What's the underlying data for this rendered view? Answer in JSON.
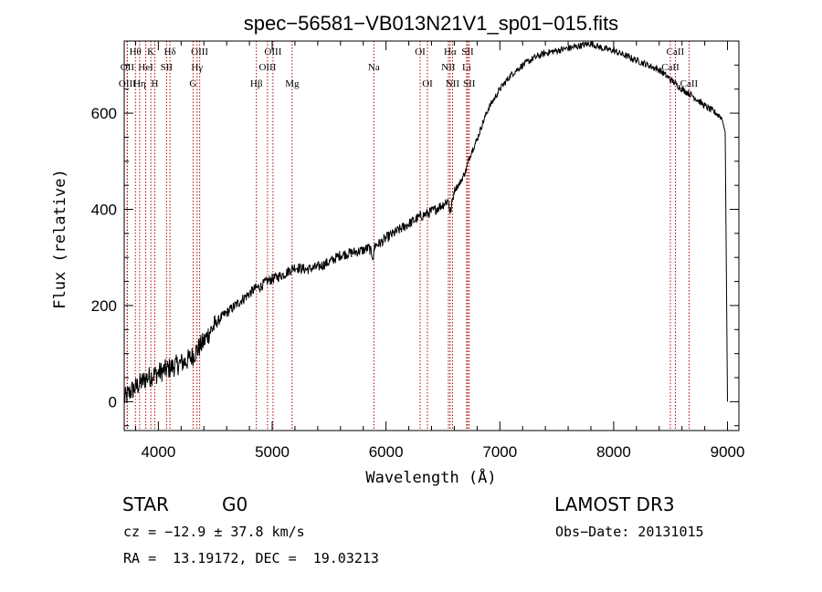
{
  "colors": {
    "spectrum": "#000000",
    "line_marker": "#b00000",
    "background": "#ffffff"
  },
  "info": {
    "object_class": "STAR",
    "subclass": "G0",
    "survey": "LAMOST DR3",
    "cz": "cz = −12.9 ± 37.8 km/s",
    "obs_date": "Obs−Date: 20131015",
    "coords": "RA =  13.19172, DEC =  19.03213"
  },
  "chart_data": {
    "type": "line",
    "title": "spec−56581−VB013N21V1_sp01−015.fits",
    "xlabel": "Wavelength (Å)",
    "ylabel": "Flux (relative)",
    "xlim": [
      3700,
      9100
    ],
    "ylim": [
      -60,
      750
    ],
    "xticks": [
      4000,
      5000,
      6000,
      7000,
      8000,
      9000
    ],
    "yticks": [
      0,
      200,
      400,
      600
    ],
    "grid": false,
    "series": [
      {
        "name": "flux",
        "x": [
          3700,
          3750,
          3800,
          3850,
          3900,
          3950,
          4000,
          4050,
          4100,
          4150,
          4200,
          4250,
          4300,
          4350,
          4400,
          4450,
          4500,
          4550,
          4600,
          4650,
          4700,
          4750,
          4800,
          4850,
          4900,
          4950,
          5000,
          5100,
          5200,
          5300,
          5400,
          5500,
          5600,
          5700,
          5800,
          5850,
          5890,
          5900,
          5950,
          6000,
          6100,
          6200,
          6300,
          6400,
          6500,
          6550,
          6563,
          6600,
          6650,
          6700,
          6750,
          6800,
          6850,
          6900,
          7000,
          7100,
          7200,
          7300,
          7400,
          7500,
          7600,
          7700,
          7800,
          7900,
          8000,
          8100,
          8200,
          8300,
          8400,
          8500,
          8600,
          8700,
          8800,
          8900,
          8950,
          8980,
          9000
        ],
        "y": [
          5,
          20,
          30,
          40,
          50,
          55,
          60,
          65,
          70,
          75,
          80,
          85,
          95,
          110,
          125,
          145,
          160,
          175,
          185,
          195,
          205,
          215,
          225,
          235,
          240,
          250,
          255,
          265,
          280,
          275,
          280,
          290,
          305,
          310,
          315,
          320,
          300,
          325,
          330,
          340,
          355,
          370,
          385,
          395,
          410,
          420,
          390,
          440,
          455,
          480,
          520,
          545,
          580,
          610,
          650,
          680,
          700,
          715,
          725,
          730,
          735,
          740,
          745,
          735,
          730,
          720,
          710,
          700,
          690,
          670,
          650,
          635,
          615,
          600,
          590,
          560,
          0
        ],
        "values_note": "estimated from plot"
      }
    ],
    "lines": [
      {
        "label": "Hθ",
        "x": 3798,
        "row": 1
      },
      {
        "label": "OII",
        "x": 3727,
        "row": 2
      },
      {
        "label": "OIII",
        "x": 3727,
        "row": 3
      },
      {
        "label": "K",
        "x": 3934,
        "row": 1
      },
      {
        "label": "H",
        "x": 3969,
        "row": 3
      },
      {
        "label": "HeI",
        "x": 3889,
        "row": 2
      },
      {
        "label": "Hη",
        "x": 3835,
        "row": 3
      },
      {
        "label": "SII",
        "x": 4072,
        "row": 2
      },
      {
        "label": "Hδ",
        "x": 4102,
        "row": 1
      },
      {
        "label": "OIII",
        "x": 4363,
        "row": 1
      },
      {
        "label": "Hγ",
        "x": 4340,
        "row": 2
      },
      {
        "label": "G",
        "x": 4305,
        "row": 3
      },
      {
        "label": "Hβ",
        "x": 4861,
        "row": 3
      },
      {
        "label": "OIII",
        "x": 5007,
        "row": 1
      },
      {
        "label": "OIII",
        "x": 4959,
        "row": 2
      },
      {
        "label": "Mg",
        "x": 5175,
        "row": 3
      },
      {
        "label": "Na",
        "x": 5893,
        "row": 2
      },
      {
        "label": "OI",
        "x": 6300,
        "row": 1
      },
      {
        "label": "OI",
        "x": 6364,
        "row": 3
      },
      {
        "label": "Hα",
        "x": 6563,
        "row": 1
      },
      {
        "label": "NII",
        "x": 6548,
        "row": 2
      },
      {
        "label": "NII",
        "x": 6584,
        "row": 3
      },
      {
        "label": "SII",
        "x": 6717,
        "row": 1
      },
      {
        "label": "Li",
        "x": 6708,
        "row": 2
      },
      {
        "label": "SII",
        "x": 6731,
        "row": 3
      },
      {
        "label": "CaII",
        "x": 8542,
        "row": 1
      },
      {
        "label": "CaII",
        "x": 8498,
        "row": 2
      },
      {
        "label": "CaII",
        "x": 8662,
        "row": 3
      }
    ]
  }
}
